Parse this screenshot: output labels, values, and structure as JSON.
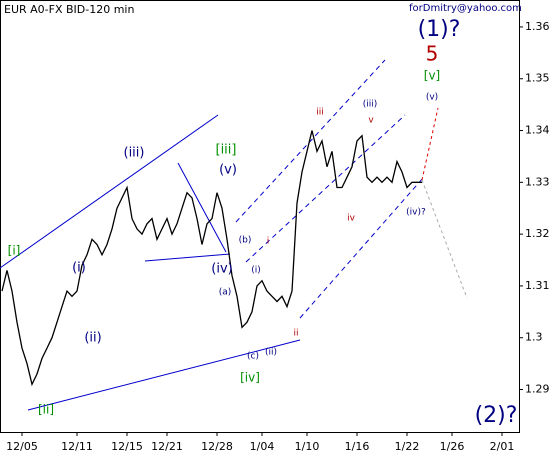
{
  "chart_data": {
    "type": "line",
    "title": "EUR A0-FX BID-120 min",
    "watermark": "forDmitry@yahoo.com",
    "x": [
      0,
      1,
      2,
      3,
      4,
      5,
      6,
      7,
      8,
      9,
      10,
      11,
      12,
      13,
      14,
      15,
      16,
      17,
      18,
      19,
      20,
      21,
      22,
      23,
      24,
      25,
      26,
      27,
      28,
      29,
      30,
      31,
      32,
      33,
      34,
      35,
      36,
      37,
      38,
      39,
      40,
      41,
      42,
      43,
      44,
      45,
      46,
      47,
      48,
      49,
      50,
      51,
      52,
      53,
      54,
      55,
      56,
      57,
      58,
      59,
      60,
      61,
      62,
      63,
      64,
      65,
      66,
      67,
      68,
      69,
      70,
      71,
      72,
      73,
      74,
      75,
      76,
      77,
      78,
      79,
      80,
      81,
      82,
      83,
      84
    ],
    "series": [
      {
        "name": "EUR",
        "color": "#000000",
        "values": [
          1.309,
          1.313,
          1.309,
          1.303,
          1.298,
          1.295,
          1.291,
          1.293,
          1.296,
          1.298,
          1.3,
          1.303,
          1.306,
          1.309,
          1.308,
          1.309,
          1.314,
          1.316,
          1.319,
          1.318,
          1.316,
          1.318,
          1.321,
          1.325,
          1.327,
          1.329,
          1.323,
          1.321,
          1.32,
          1.322,
          1.323,
          1.319,
          1.321,
          1.323,
          1.32,
          1.322,
          1.325,
          1.328,
          1.327,
          1.323,
          1.318,
          1.322,
          1.323,
          1.328,
          1.325,
          1.319,
          1.312,
          1.308,
          1.302,
          1.303,
          1.305,
          1.31,
          1.311,
          1.309,
          1.308,
          1.307,
          1.308,
          1.306,
          1.309,
          1.326,
          1.332,
          1.336,
          1.34,
          1.336,
          1.338,
          1.333,
          1.336,
          1.329,
          1.329,
          1.331,
          1.333,
          1.338,
          1.339,
          1.331,
          1.33,
          1.331,
          1.33,
          1.331,
          1.33,
          1.334,
          1.332,
          1.329,
          1.33,
          1.33,
          1.33
        ]
      }
    ],
    "xlim": [
      -0.4,
      103.4
    ],
    "xticks": [
      {
        "value": 4,
        "label": "12/05"
      },
      {
        "value": 15,
        "label": "12/11"
      },
      {
        "value": 25,
        "label": "12/15"
      },
      {
        "value": 33,
        "label": "12/21"
      },
      {
        "value": 43,
        "label": "12/28"
      },
      {
        "value": 52,
        "label": "1/04"
      },
      {
        "value": 61,
        "label": "1/10"
      },
      {
        "value": 71,
        "label": "1/16"
      },
      {
        "value": 81,
        "label": "1/22"
      },
      {
        "value": 90,
        "label": "1/26"
      },
      {
        "value": 100,
        "label": "2/01"
      }
    ],
    "ylim": [
      1.2818,
      1.3652
    ],
    "yticks": [
      1.29,
      1.3,
      1.31,
      1.32,
      1.33,
      1.34,
      1.35,
      1.36
    ],
    "annotations": [
      "[i]",
      "[ii]",
      "(i)",
      "(ii)",
      "(iii)",
      "[iii]",
      "(v)",
      "(iv)",
      "(b)",
      "(a)",
      "(i)",
      "(c)",
      "(ii)",
      "[iv]",
      "i",
      "ii",
      "iii",
      "(iii)",
      "v",
      "iv",
      "(iv)?",
      "(v)",
      "[v]",
      "5",
      "(1)?",
      "(2)?"
    ]
  }
}
